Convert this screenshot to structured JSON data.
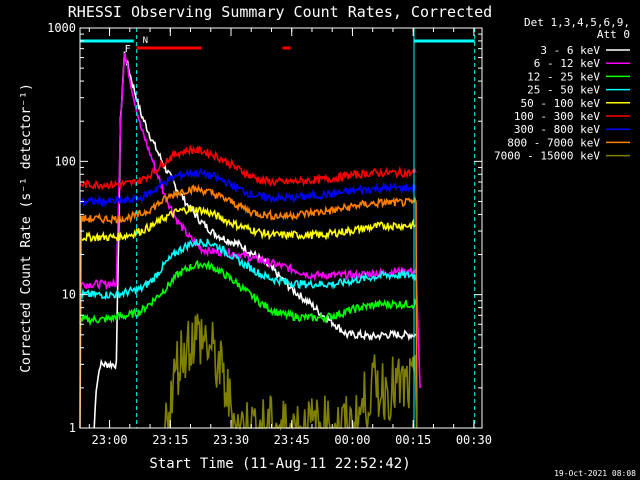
{
  "title": "RHESSI Observing Summary Count Rates, Corrected",
  "ylabel": "Corrected Count Rate (s⁻¹ detector⁻¹)",
  "xlabel": "Start Time (11-Aug-11 22:52:42)",
  "footer": "19-Oct-2021 08:08",
  "detector_info": [
    "Det 1,3,4,5,6,9,",
    "Att 0"
  ],
  "flags": {
    "flare": "F",
    "night": "N"
  },
  "colors": {
    "background": "#000000",
    "axes": "#ffffff",
    "attenuator": "#00ffff",
    "flare_bar": "#ff0000"
  },
  "chart_data": {
    "type": "line",
    "x_unit": "time (UT, 11-Aug-2011 to 12-Aug-2011)",
    "x_range": [
      "22:52:42",
      "00:32:00"
    ],
    "x_ticks": [
      "23:00",
      "23:15",
      "23:30",
      "23:45",
      "00:00",
      "00:15",
      "00:30"
    ],
    "x_tick_minutes": [
      7.3,
      22.3,
      37.3,
      52.3,
      67.3,
      82.3,
      97.3
    ],
    "y_scale": "log",
    "y_range": [
      1,
      1000
    ],
    "y_ticks": [
      "1",
      "10",
      "100",
      "1000"
    ],
    "series": [
      {
        "name": "3 - 6 keV",
        "color": "#ffffff",
        "points": [
          [
            3.5,
            1
          ],
          [
            4,
            2
          ],
          [
            5,
            3
          ],
          [
            7,
            3
          ],
          [
            9,
            3
          ],
          [
            10,
            200
          ],
          [
            11,
            650
          ],
          [
            13,
            380
          ],
          [
            15,
            230
          ],
          [
            18,
            140
          ],
          [
            21,
            90
          ],
          [
            24,
            62
          ],
          [
            27,
            45
          ],
          [
            30,
            35
          ],
          [
            33,
            29
          ],
          [
            36,
            26
          ],
          [
            39,
            24
          ],
          [
            42,
            21
          ],
          [
            45,
            18
          ],
          [
            48,
            15
          ],
          [
            51,
            12
          ],
          [
            54,
            10
          ],
          [
            57,
            8.5
          ],
          [
            60,
            7
          ],
          [
            63,
            6
          ],
          [
            66,
            5
          ],
          [
            69,
            5
          ],
          [
            72,
            4.8
          ],
          [
            75,
            5
          ],
          [
            78,
            5
          ],
          [
            81,
            5
          ],
          [
            83,
            5
          ]
        ]
      },
      {
        "name": "6 - 12 keV",
        "color": "#ff00ff",
        "points": [
          [
            0,
            12
          ],
          [
            9,
            12
          ],
          [
            10,
            200
          ],
          [
            11,
            650
          ],
          [
            13,
            330
          ],
          [
            15,
            180
          ],
          [
            18,
            100
          ],
          [
            21,
            55
          ],
          [
            24,
            36
          ],
          [
            27,
            27
          ],
          [
            30,
            22
          ],
          [
            33,
            21
          ],
          [
            36,
            21
          ],
          [
            39,
            20
          ],
          [
            42,
            19
          ],
          [
            45,
            18
          ],
          [
            48,
            17
          ],
          [
            51,
            16
          ],
          [
            54,
            15
          ],
          [
            57,
            14
          ],
          [
            60,
            14
          ],
          [
            63,
            14
          ],
          [
            66,
            14
          ],
          [
            69,
            14
          ],
          [
            72,
            14.5
          ],
          [
            75,
            14.5
          ],
          [
            78,
            15
          ],
          [
            81,
            15
          ],
          [
            83,
            15
          ],
          [
            84,
            2
          ]
        ]
      },
      {
        "name": "12 - 25 keV",
        "color": "#00ff00",
        "points": [
          [
            0,
            6.5
          ],
          [
            6,
            6.5
          ],
          [
            9,
            6.8
          ],
          [
            12,
            7
          ],
          [
            15,
            7.5
          ],
          [
            18,
            9
          ],
          [
            21,
            11
          ],
          [
            24,
            14
          ],
          [
            27,
            16
          ],
          [
            30,
            17
          ],
          [
            33,
            16
          ],
          [
            36,
            14
          ],
          [
            39,
            12
          ],
          [
            42,
            10
          ],
          [
            45,
            8.5
          ],
          [
            48,
            7.5
          ],
          [
            51,
            7
          ],
          [
            54,
            6.8
          ],
          [
            57,
            6.7
          ],
          [
            60,
            6.7
          ],
          [
            63,
            7
          ],
          [
            66,
            7.5
          ],
          [
            69,
            8
          ],
          [
            72,
            8.3
          ],
          [
            75,
            8.5
          ],
          [
            78,
            8.5
          ],
          [
            81,
            8.5
          ],
          [
            83,
            8.5
          ]
        ]
      },
      {
        "name": "25 - 50 keV",
        "color": "#00ffff",
        "points": [
          [
            0,
            10
          ],
          [
            9,
            10
          ],
          [
            12,
            10.5
          ],
          [
            15,
            11
          ],
          [
            18,
            13
          ],
          [
            21,
            17
          ],
          [
            24,
            21
          ],
          [
            27,
            24
          ],
          [
            30,
            25
          ],
          [
            33,
            24
          ],
          [
            36,
            21
          ],
          [
            39,
            18
          ],
          [
            42,
            16
          ],
          [
            45,
            14
          ],
          [
            48,
            13
          ],
          [
            51,
            12.5
          ],
          [
            54,
            12
          ],
          [
            57,
            12
          ],
          [
            60,
            12
          ],
          [
            63,
            12
          ],
          [
            66,
            12.5
          ],
          [
            69,
            13
          ],
          [
            72,
            13.5
          ],
          [
            75,
            14
          ],
          [
            78,
            14
          ],
          [
            81,
            14
          ],
          [
            83,
            14
          ]
        ]
      },
      {
        "name": "50 - 100 keV",
        "color": "#ffff00",
        "points": [
          [
            0,
            27
          ],
          [
            9,
            27
          ],
          [
            12,
            28
          ],
          [
            15,
            30
          ],
          [
            18,
            33
          ],
          [
            21,
            38
          ],
          [
            24,
            42
          ],
          [
            27,
            44
          ],
          [
            30,
            43
          ],
          [
            33,
            40
          ],
          [
            36,
            36
          ],
          [
            39,
            33
          ],
          [
            42,
            31
          ],
          [
            45,
            29
          ],
          [
            48,
            28
          ],
          [
            51,
            28
          ],
          [
            54,
            28
          ],
          [
            57,
            28
          ],
          [
            60,
            28
          ],
          [
            63,
            29
          ],
          [
            66,
            30
          ],
          [
            69,
            31
          ],
          [
            72,
            32
          ],
          [
            75,
            33
          ],
          [
            78,
            33
          ],
          [
            81,
            33
          ],
          [
            83,
            33
          ]
        ]
      },
      {
        "name": "100 - 300 keV",
        "color": "#ff0000",
        "points": [
          [
            0,
            67
          ],
          [
            9,
            67
          ],
          [
            12,
            68
          ],
          [
            15,
            72
          ],
          [
            18,
            82
          ],
          [
            21,
            100
          ],
          [
            24,
            115
          ],
          [
            27,
            122
          ],
          [
            30,
            120
          ],
          [
            33,
            112
          ],
          [
            36,
            100
          ],
          [
            39,
            88
          ],
          [
            42,
            78
          ],
          [
            45,
            72
          ],
          [
            48,
            70
          ],
          [
            51,
            70
          ],
          [
            54,
            71
          ],
          [
            57,
            72
          ],
          [
            60,
            73
          ],
          [
            63,
            75
          ],
          [
            66,
            78
          ],
          [
            69,
            80
          ],
          [
            72,
            82
          ],
          [
            75,
            82
          ],
          [
            78,
            82
          ],
          [
            81,
            82
          ],
          [
            83,
            82
          ]
        ]
      },
      {
        "name": "300 - 800 keV",
        "color": "#0000ff",
        "points": [
          [
            0,
            50
          ],
          [
            9,
            50
          ],
          [
            12,
            51
          ],
          [
            15,
            53
          ],
          [
            18,
            60
          ],
          [
            21,
            70
          ],
          [
            24,
            78
          ],
          [
            27,
            82
          ],
          [
            30,
            81
          ],
          [
            33,
            77
          ],
          [
            36,
            70
          ],
          [
            39,
            63
          ],
          [
            42,
            57
          ],
          [
            45,
            54
          ],
          [
            48,
            53
          ],
          [
            51,
            53
          ],
          [
            54,
            54
          ],
          [
            57,
            55
          ],
          [
            60,
            56
          ],
          [
            63,
            57
          ],
          [
            66,
            59
          ],
          [
            69,
            61
          ],
          [
            72,
            62
          ],
          [
            75,
            63
          ],
          [
            78,
            63
          ],
          [
            81,
            63
          ],
          [
            83,
            63
          ]
        ]
      },
      {
        "name": "800 - 7000 keV",
        "color": "#ff8000",
        "points": [
          [
            0,
            1
          ],
          [
            0.3,
            37
          ],
          [
            9,
            37
          ],
          [
            12,
            38
          ],
          [
            15,
            40
          ],
          [
            18,
            45
          ],
          [
            21,
            52
          ],
          [
            24,
            58
          ],
          [
            27,
            62
          ],
          [
            30,
            61
          ],
          [
            33,
            57
          ],
          [
            36,
            52
          ],
          [
            39,
            47
          ],
          [
            42,
            42
          ],
          [
            45,
            40
          ],
          [
            48,
            39
          ],
          [
            51,
            39
          ],
          [
            54,
            40
          ],
          [
            57,
            41
          ],
          [
            60,
            42
          ],
          [
            63,
            43
          ],
          [
            66,
            45
          ],
          [
            69,
            47
          ],
          [
            72,
            48
          ],
          [
            75,
            49
          ],
          [
            78,
            49
          ],
          [
            81,
            49
          ],
          [
            83,
            49
          ],
          [
            83.2,
            1
          ]
        ]
      },
      {
        "name": "7000 - 15000 keV",
        "color": "#808000",
        "points": [
          [
            21,
            1
          ],
          [
            22,
            1.5
          ],
          [
            23,
            2
          ],
          [
            24,
            3
          ],
          [
            25,
            3.5
          ],
          [
            26,
            4
          ],
          [
            27,
            4.5
          ],
          [
            28,
            4.8
          ],
          [
            29,
            5
          ],
          [
            30,
            4.8
          ],
          [
            31,
            4.5
          ],
          [
            32,
            4
          ],
          [
            33,
            3.5
          ],
          [
            34,
            3
          ],
          [
            35,
            2.5
          ],
          [
            36,
            2
          ],
          [
            37,
            1.5
          ],
          [
            38,
            1.2
          ],
          [
            39,
            1
          ],
          [
            50,
            1
          ],
          [
            68,
            1
          ],
          [
            70,
            1.5
          ],
          [
            72,
            2
          ],
          [
            74,
            2
          ],
          [
            76,
            2
          ],
          [
            78,
            2
          ],
          [
            80,
            2
          ],
          [
            82,
            2
          ],
          [
            83,
            2
          ],
          [
            83.2,
            1
          ]
        ]
      }
    ],
    "attenuator_markers_minutes": [
      14,
      82.5,
      97.5
    ],
    "flare_interval_minutes": [
      [
        14,
        30
      ],
      [
        50,
        52
      ]
    ]
  }
}
